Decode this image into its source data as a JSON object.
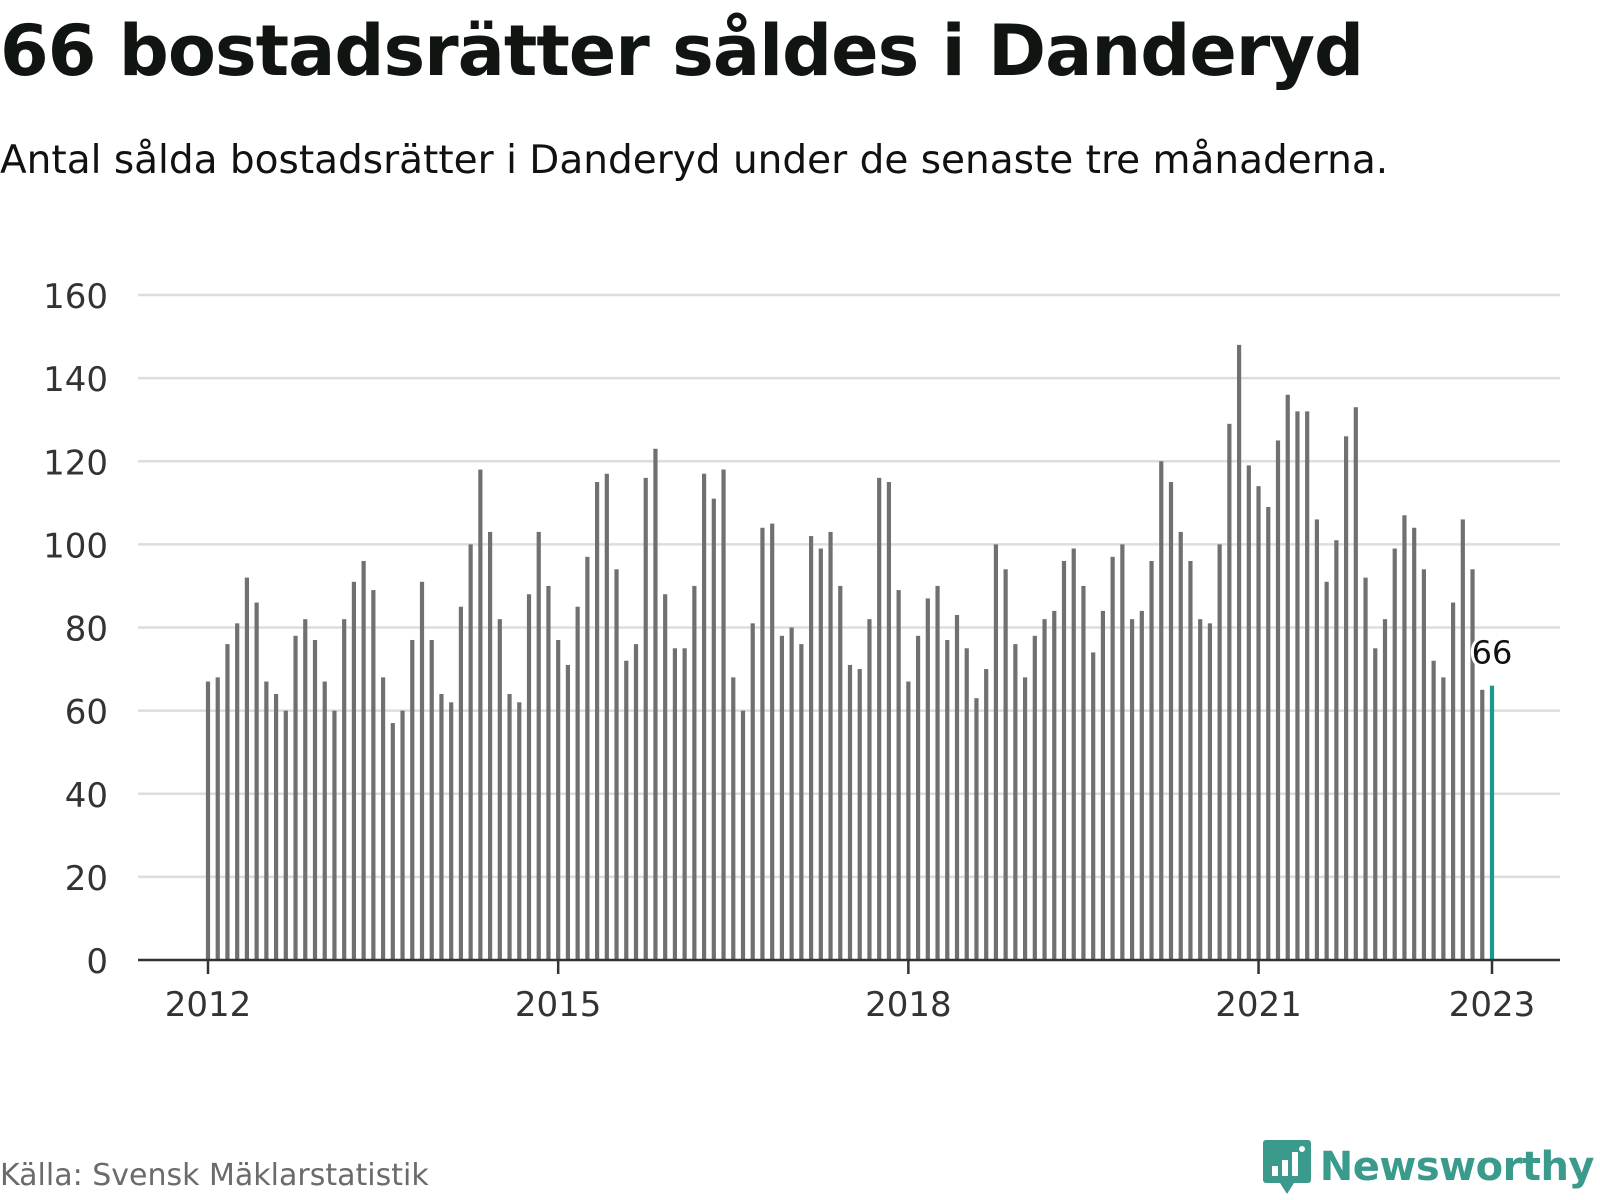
{
  "header": {
    "title": "66 bostadsrätter såldes i Danderyd",
    "subtitle": "Antal sålda bostadsrätter i Danderyd under de senaste tre månaderna."
  },
  "footer": {
    "source": "Källa: Svensk Mäklarstatistik",
    "brand": "Newsworthy"
  },
  "colors": {
    "bar": "#707070",
    "highlight": "#1a9a8e",
    "grid": "#dddddd",
    "axis": "#333333",
    "brand": "#3a9a8c"
  },
  "icons": {
    "brand_logo": "bar-chart-speech-bubble-icon"
  },
  "chart_data": {
    "type": "bar",
    "title": "66 bostadsrätter såldes i Danderyd",
    "subtitle": "Antal sålda bostadsrätter i Danderyd under de senaste tre månaderna.",
    "xlabel": "",
    "ylabel": "",
    "ylim": [
      0,
      160
    ],
    "yticks": [
      0,
      20,
      40,
      60,
      80,
      100,
      120,
      140,
      160
    ],
    "xticks": [
      "2012",
      "2015",
      "2018",
      "2021",
      "2023"
    ],
    "grid": true,
    "start": "2012-01",
    "end": "2023-01",
    "highlight": {
      "label": "66",
      "index": 132
    },
    "values": [
      67,
      68,
      76,
      81,
      92,
      86,
      67,
      64,
      60,
      78,
      82,
      77,
      67,
      60,
      82,
      91,
      96,
      89,
      68,
      57,
      60,
      77,
      91,
      77,
      64,
      62,
      85,
      100,
      118,
      103,
      82,
      64,
      62,
      88,
      103,
      90,
      77,
      71,
      85,
      97,
      115,
      117,
      94,
      72,
      76,
      116,
      123,
      88,
      75,
      75,
      90,
      117,
      111,
      118,
      68,
      60,
      81,
      104,
      105,
      78,
      80,
      76,
      102,
      99,
      103,
      90,
      71,
      70,
      82,
      116,
      115,
      89,
      67,
      78,
      87,
      90,
      77,
      83,
      75,
      63,
      70,
      100,
      94,
      76,
      68,
      78,
      82,
      84,
      96,
      99,
      90,
      74,
      84,
      97,
      100,
      82,
      84,
      96,
      120,
      115,
      103,
      96,
      82,
      81,
      100,
      129,
      148,
      119,
      114,
      109,
      125,
      136,
      132,
      132,
      106,
      91,
      101,
      126,
      133,
      92,
      75,
      82,
      99,
      107,
      104,
      94,
      72,
      68,
      86,
      106,
      94,
      65,
      66
    ]
  }
}
